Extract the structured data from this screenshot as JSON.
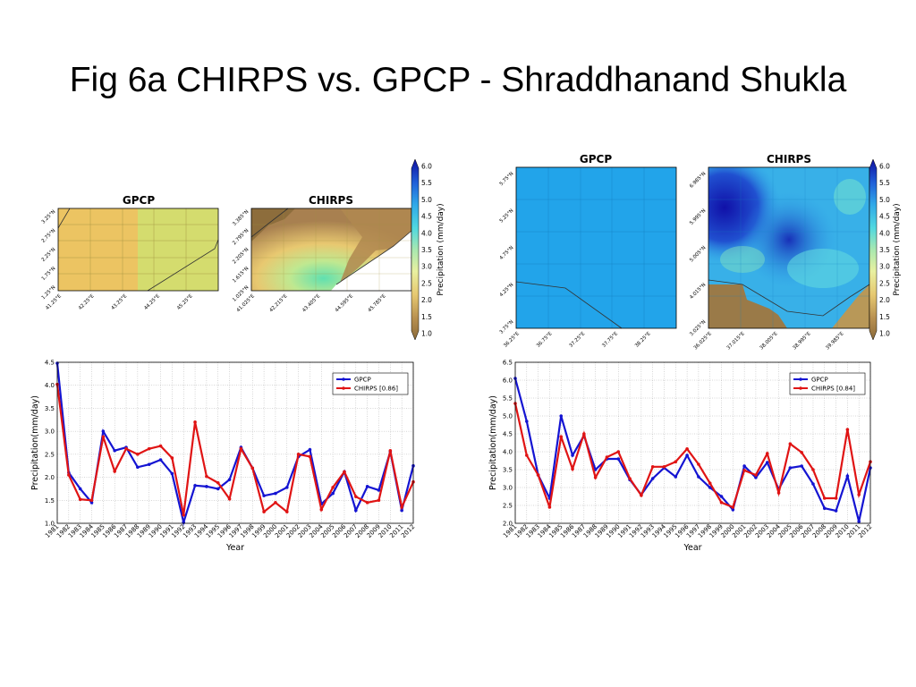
{
  "title": "Fig 6a CHIRPS vs. GPCP - Shraddhanand Shukla",
  "colors": {
    "gpcp": "#1414d2",
    "chirps": "#e01414"
  },
  "colorbar": {
    "label": "Precipitation (mm/day)",
    "ticks": [
      "1.0",
      "1.5",
      "2.0",
      "2.5",
      "3.0",
      "3.5",
      "4.0",
      "4.5",
      "5.0",
      "5.5",
      "6.0"
    ]
  },
  "maps_left": {
    "gpcp": {
      "title": "GPCP",
      "lat_ticks": [
        "1.25°N",
        "1.75°N",
        "2.25°N",
        "2.75°N",
        "3.25°N"
      ],
      "lon_ticks": [
        "41.25°E",
        "42.25°E",
        "43.25°E",
        "44.25°E",
        "45.25°E"
      ]
    },
    "chirps": {
      "title": "CHIRPS",
      "lat_ticks": [
        "1.025°N",
        "1.615°N",
        "2.205°N",
        "2.795°N",
        "3.385°N"
      ],
      "lon_ticks": [
        "41.025°E",
        "42.215°E",
        "43.405°E",
        "44.595°E",
        "45.785°E"
      ]
    }
  },
  "maps_right": {
    "gpcp": {
      "title": "GPCP",
      "lat_ticks": [
        "3.75°N",
        "4.25°N",
        "4.75°N",
        "5.25°N",
        "5.75°N"
      ],
      "lon_ticks": [
        "36.25°E",
        "36.75°E",
        "37.25°E",
        "37.75°E",
        "38.25°E"
      ]
    },
    "chirps": {
      "title": "CHIRPS",
      "lat_ticks": [
        "3.025°N",
        "4.015°N",
        "5.005°N",
        "5.995°N",
        "6.985°N"
      ],
      "lon_ticks": [
        "36.025°E",
        "37.015°E",
        "38.005°E",
        "38.995°E",
        "39.985°E"
      ]
    }
  },
  "chart_data": [
    {
      "type": "line",
      "xlabel": "Year",
      "ylabel": "Precipitation(mm/day)",
      "ylim": [
        1.0,
        4.5
      ],
      "yticks": [
        "1.0",
        "1.5",
        "2.0",
        "2.5",
        "3.0",
        "3.5",
        "4.0",
        "4.5"
      ],
      "grid": true,
      "legend": "top-right",
      "x": [
        "1981",
        "1982",
        "1983",
        "1984",
        "1985",
        "1986",
        "1987",
        "1988",
        "1989",
        "1990",
        "1991",
        "1992",
        "1993",
        "1994",
        "1995",
        "1996",
        "1997",
        "1998",
        "1999",
        "2000",
        "2001",
        "2002",
        "2003",
        "2004",
        "2005",
        "2006",
        "2007",
        "2008",
        "2009",
        "2010",
        "2011",
        "2012"
      ],
      "series": [
        {
          "name": "GPCP",
          "values": [
            4.48,
            2.1,
            1.75,
            1.45,
            3.0,
            2.58,
            2.65,
            2.22,
            2.28,
            2.38,
            2.08,
            1.02,
            1.82,
            1.8,
            1.75,
            1.95,
            2.65,
            2.2,
            1.6,
            1.65,
            1.78,
            2.45,
            2.6,
            1.42,
            1.65,
            2.12,
            1.28,
            1.8,
            1.72,
            2.56,
            1.28,
            2.25
          ]
        },
        {
          "name": "CHIRPS [0.86]",
          "values": [
            4.02,
            2.05,
            1.52,
            1.5,
            2.88,
            2.13,
            2.62,
            2.5,
            2.62,
            2.68,
            2.42,
            1.18,
            3.2,
            2.02,
            1.88,
            1.53,
            2.62,
            2.2,
            1.25,
            1.45,
            1.25,
            2.5,
            2.45,
            1.3,
            1.78,
            2.12,
            1.58,
            1.45,
            1.5,
            2.58,
            1.35,
            1.9
          ]
        }
      ]
    },
    {
      "type": "line",
      "xlabel": "Year",
      "ylabel": "Precipitation(mm/day)",
      "ylim": [
        2.0,
        6.5
      ],
      "yticks": [
        "2.0",
        "2.5",
        "3.0",
        "3.5",
        "4.0",
        "4.5",
        "5.0",
        "5.5",
        "6.0",
        "6.5"
      ],
      "grid": true,
      "legend": "top-right",
      "x": [
        "1981",
        "1982",
        "1983",
        "1984",
        "1985",
        "1986",
        "1987",
        "1988",
        "1989",
        "1990",
        "1991",
        "1992",
        "1993",
        "1994",
        "1995",
        "1996",
        "1997",
        "1998",
        "1999",
        "2000",
        "2001",
        "2002",
        "2003",
        "2004",
        "2005",
        "2006",
        "2007",
        "2008",
        "2009",
        "2010",
        "2011",
        "2012"
      ],
      "series": [
        {
          "name": "GPCP",
          "values": [
            6.05,
            4.85,
            3.35,
            2.7,
            5.0,
            3.9,
            4.45,
            3.5,
            3.8,
            3.8,
            3.22,
            2.8,
            3.25,
            3.55,
            3.3,
            3.9,
            3.3,
            3.0,
            2.75,
            2.38,
            3.6,
            3.28,
            3.7,
            2.95,
            3.55,
            3.6,
            3.1,
            2.42,
            2.35,
            3.32,
            2.05,
            3.55
          ]
        },
        {
          "name": "CHIRPS [0.84]",
          "values": [
            5.35,
            3.9,
            3.35,
            2.45,
            4.42,
            3.52,
            4.5,
            3.28,
            3.85,
            4.0,
            3.25,
            2.78,
            3.58,
            3.58,
            3.72,
            4.08,
            3.65,
            3.12,
            2.58,
            2.45,
            3.48,
            3.35,
            3.95,
            2.85,
            4.22,
            3.98,
            3.5,
            2.7,
            2.7,
            4.62,
            2.8,
            3.72
          ]
        }
      ]
    }
  ]
}
